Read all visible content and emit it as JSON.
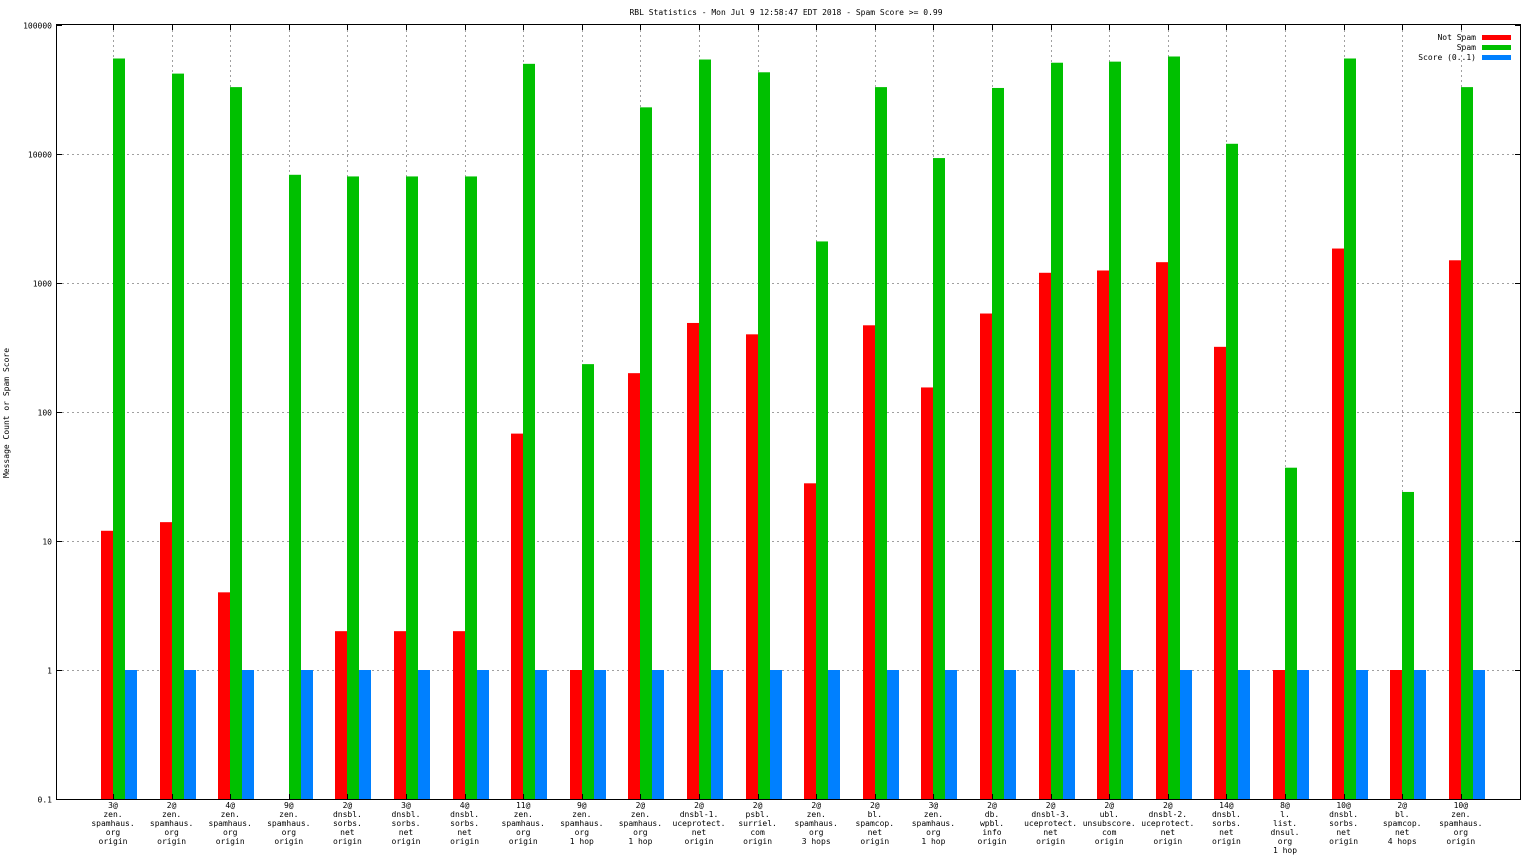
{
  "chart_data": {
    "type": "bar",
    "title": "RBL Statistics - Mon Jul  9 12:58:47 EDT 2018 - Spam Score >= 0.99",
    "ylabel": "Message Count or Spam Score",
    "xlabel": "",
    "yscale": "log",
    "ylim": [
      0.1,
      100000
    ],
    "yticks": [
      "0.1",
      "1",
      "10",
      "100",
      "1000",
      "10000",
      "100000"
    ],
    "grid": true,
    "legend_position": "top-right",
    "categories": [
      [
        "3@",
        "zen.",
        "spamhaus.",
        "org",
        "origin"
      ],
      [
        "2@",
        "zen.",
        "spamhaus.",
        "org",
        "origin"
      ],
      [
        "4@",
        "zen.",
        "spamhaus.",
        "org",
        "origin"
      ],
      [
        "9@",
        "zen.",
        "spamhaus.",
        "org",
        "origin"
      ],
      [
        "2@",
        "dnsbl.",
        "sorbs.",
        "net",
        "origin"
      ],
      [
        "3@",
        "dnsbl.",
        "sorbs.",
        "net",
        "origin"
      ],
      [
        "4@",
        "dnsbl.",
        "sorbs.",
        "net",
        "origin"
      ],
      [
        "11@",
        "zen.",
        "spamhaus.",
        "org",
        "origin"
      ],
      [
        "9@",
        "zen.",
        "spamhaus.",
        "org",
        "1 hop"
      ],
      [
        "2@",
        "zen.",
        "spamhaus.",
        "org",
        "1 hop"
      ],
      [
        "2@",
        "dnsbl-1.",
        "uceprotect.",
        "net",
        "origin"
      ],
      [
        "2@",
        "psbl.",
        "surriel.",
        "com",
        "origin"
      ],
      [
        "2@",
        "zen.",
        "spamhaus.",
        "org",
        "3 hops"
      ],
      [
        "2@",
        "bl.",
        "spamcop.",
        "net",
        "origin"
      ],
      [
        "3@",
        "zen.",
        "spamhaus.",
        "org",
        "1 hop"
      ],
      [
        "2@",
        "db.",
        "wpbl.",
        "info",
        "origin"
      ],
      [
        "2@",
        "dnsbl-3.",
        "uceprotect.",
        "net",
        "origin"
      ],
      [
        "2@",
        "ubl.",
        "unsubscore.",
        "com",
        "origin"
      ],
      [
        "2@",
        "dnsbl-2.",
        "uceprotect.",
        "net",
        "origin"
      ],
      [
        "14@",
        "dnsbl.",
        "sorbs.",
        "net",
        "origin"
      ],
      [
        "8@",
        "l.",
        "list.",
        "dnsul.",
        "org",
        "1 hop"
      ],
      [
        "10@",
        "dnsbl.",
        "sorbs.",
        "net",
        "origin"
      ],
      [
        "2@",
        "bl.",
        "spamcop.",
        "net",
        "4 hops"
      ],
      [
        "10@",
        "zen.",
        "spamhaus.",
        "org",
        "origin"
      ]
    ],
    "series": [
      {
        "name": "Not Spam",
        "color": "#ff0000",
        "values": [
          12,
          14,
          4,
          null,
          2,
          2,
          2,
          68,
          1,
          200,
          490,
          400,
          28,
          470,
          155,
          580,
          1200,
          1250,
          1450,
          320,
          1,
          1850,
          1,
          1500
        ]
      },
      {
        "name": "Spam",
        "color": "#00c000",
        "values": [
          55000,
          42000,
          33000,
          6900,
          6700,
          6700,
          6700,
          50000,
          235,
          23000,
          54000,
          43000,
          2100,
          33000,
          9300,
          32500,
          51000,
          52000,
          57000,
          12000,
          37,
          55000,
          24,
          33000
        ]
      },
      {
        "name": "Score (0..1)",
        "color": "#0080ff",
        "values": [
          1,
          1,
          1,
          1,
          1,
          1,
          1,
          1,
          1,
          1,
          1,
          1,
          1,
          1,
          1,
          1,
          1,
          1,
          1,
          1,
          1,
          1,
          1,
          1
        ]
      }
    ]
  }
}
